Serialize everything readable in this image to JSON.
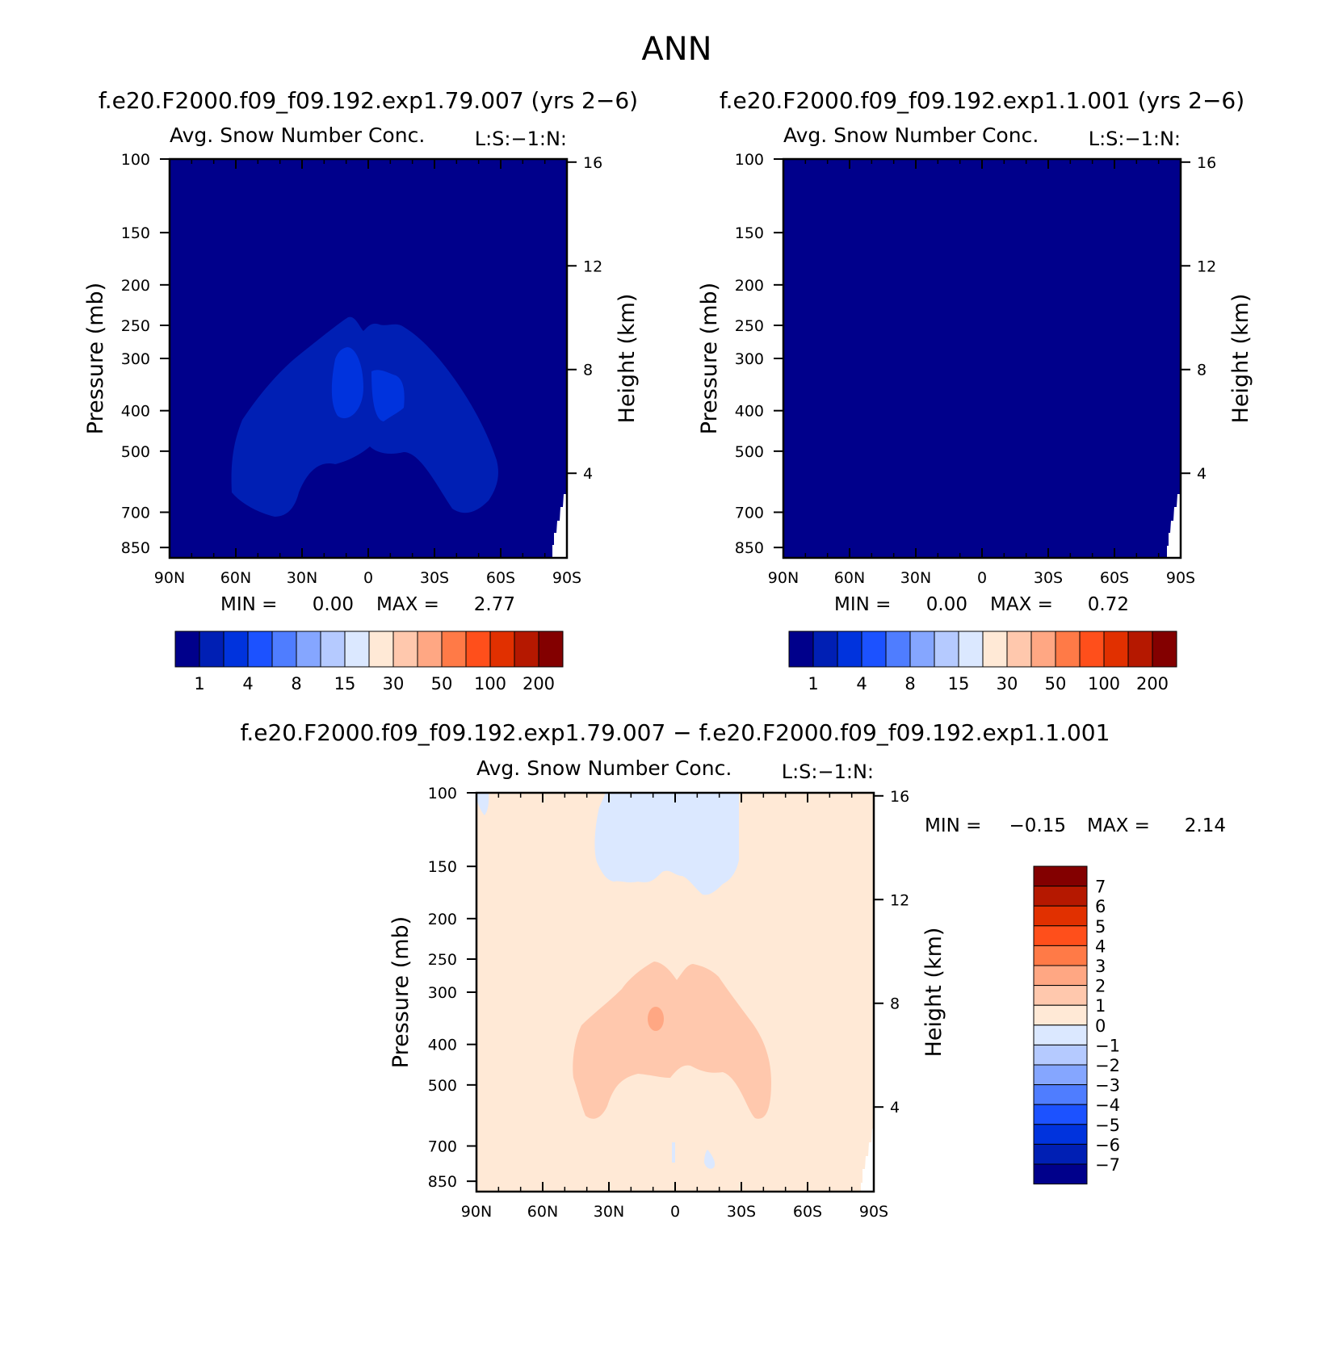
{
  "figure": {
    "title": "ANN",
    "diff_title": "f.e20.F2000.f09_f09.192.exp1.79.007 − f.e20.F2000.f09_f09.192.exp1.1.001"
  },
  "palette": {
    "main_levels": [
      "1",
      "4",
      "8",
      "15",
      "30",
      "50",
      "100",
      "200"
    ],
    "main_colors": [
      "#00008b",
      "#001fb4",
      "#0033dd",
      "#1c52ff",
      "#4f7dff",
      "#85a6ff",
      "#b5caff",
      "#dbe8ff",
      "#ffe9d6",
      "#ffc8ad",
      "#ffa783",
      "#ff7a47",
      "#ff4f1b",
      "#e13000",
      "#b51800",
      "#830000"
    ],
    "diff_levels": [
      "7",
      "6",
      "5",
      "4",
      "3",
      "2",
      "1",
      "0",
      "−1",
      "−2",
      "−3",
      "−4",
      "−5",
      "−6",
      "−7"
    ],
    "diff_colors": [
      "#830000",
      "#b51800",
      "#e13000",
      "#ff4f1b",
      "#ff7a47",
      "#ffa783",
      "#ffc8ad",
      "#ffe9d6",
      "#dbe8ff",
      "#b5caff",
      "#85a6ff",
      "#4f7dff",
      "#1c52ff",
      "#0033dd",
      "#001fb4",
      "#00008b"
    ]
  },
  "chart_data": [
    {
      "type": "heatmap",
      "case": "f.e20.F2000.f09_f09.192.exp1.79.007 (yrs 2−6)",
      "title": "Avg. Snow Number Conc.",
      "tag": "L:S:−1:N:",
      "xlabel": "",
      "ylabel": "Pressure (mb)",
      "y2label": "Height (km)",
      "x_ticks": [
        "90N",
        "60N",
        "30N",
        "0",
        "30S",
        "60S",
        "90S"
      ],
      "y_ticks": [
        "100",
        "150",
        "200",
        "250",
        "300",
        "400",
        "500",
        "700",
        "850"
      ],
      "y2_ticks": [
        "16",
        "12",
        "8",
        "4"
      ],
      "min_label": "MIN =",
      "min_value": "0.00",
      "max_label": "MAX =",
      "max_value": "2.77",
      "colorbar_levels": [
        "1",
        "4",
        "8",
        "15",
        "30",
        "50",
        "100",
        "200"
      ]
    },
    {
      "type": "heatmap",
      "case": "f.e20.F2000.f09_f09.192.exp1.1.001 (yrs 2−6)",
      "title": "Avg. Snow Number Conc.",
      "tag": "L:S:−1:N:",
      "xlabel": "",
      "ylabel": "Pressure (mb)",
      "y2label": "Height (km)",
      "x_ticks": [
        "90N",
        "60N",
        "30N",
        "0",
        "30S",
        "60S",
        "90S"
      ],
      "y_ticks": [
        "100",
        "150",
        "200",
        "250",
        "300",
        "400",
        "500",
        "700",
        "850"
      ],
      "y2_ticks": [
        "16",
        "12",
        "8",
        "4"
      ],
      "min_label": "MIN =",
      "min_value": "0.00",
      "max_label": "MAX =",
      "max_value": "0.72",
      "colorbar_levels": [
        "1",
        "4",
        "8",
        "15",
        "30",
        "50",
        "100",
        "200"
      ]
    },
    {
      "type": "heatmap",
      "title": "Avg. Snow Number Conc.",
      "tag": "L:S:−1:N:",
      "xlabel": "",
      "ylabel": "Pressure (mb)",
      "y2label": "Height (km)",
      "x_ticks": [
        "90N",
        "60N",
        "30N",
        "0",
        "30S",
        "60S",
        "90S"
      ],
      "y_ticks": [
        "100",
        "150",
        "200",
        "250",
        "300",
        "400",
        "500",
        "700",
        "850"
      ],
      "y2_ticks": [
        "16",
        "12",
        "8",
        "4"
      ],
      "min_label": "MIN =",
      "min_value": "−0.15",
      "max_label": "MAX =",
      "max_value": "2.14",
      "colorbar_levels": [
        "7",
        "6",
        "5",
        "4",
        "3",
        "2",
        "1",
        "0",
        "−1",
        "−2",
        "−3",
        "−4",
        "−5",
        "−6",
        "−7"
      ]
    }
  ]
}
